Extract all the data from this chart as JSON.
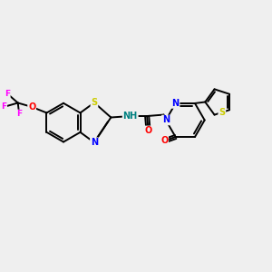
{
  "background_color": "#efefef",
  "bond_color": "#000000",
  "bond_width": 1.4,
  "atom_colors": {
    "S": "#cccc00",
    "N": "#0000ff",
    "O": "#ff0000",
    "F": "#ff00ff",
    "C": "#000000",
    "H": "#008080"
  },
  "font_size": 7.0,
  "fig_width": 3.0,
  "fig_height": 3.0,
  "dpi": 100
}
